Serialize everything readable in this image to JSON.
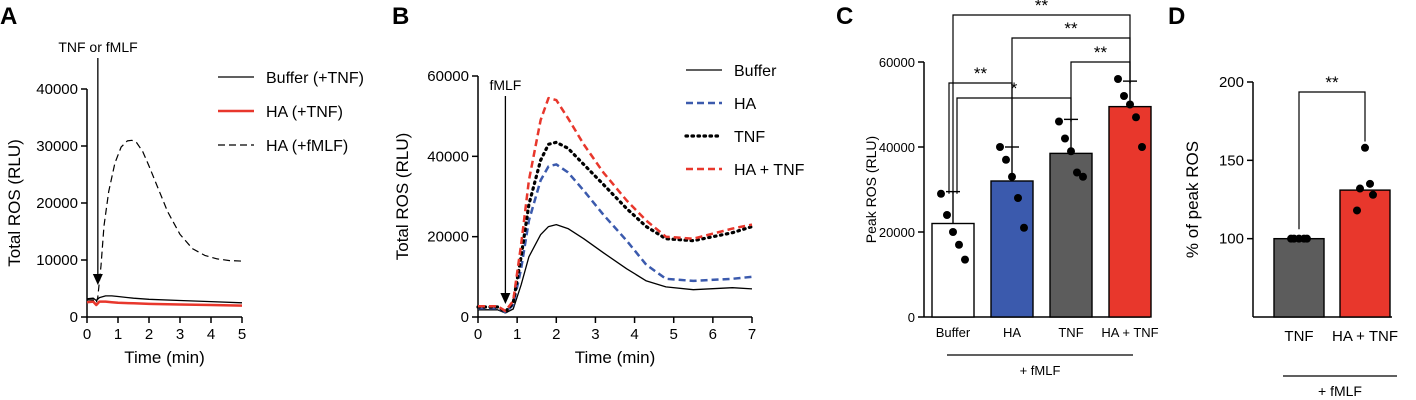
{
  "colors": {
    "black": "#000000",
    "red": "#e8372c",
    "blue": "#3b5aad",
    "grey": "#5c5c5c",
    "white": "#ffffff"
  },
  "panels": {
    "a": "A",
    "b": "B",
    "c": "C",
    "d": "D"
  },
  "chart_data": [
    {
      "id": "A",
      "type": "line",
      "title": "",
      "xlabel": "Time (min)",
      "ylabel": "Total ROS (RLU)",
      "xlim": [
        0,
        5
      ],
      "ylim": [
        0,
        40000
      ],
      "xticks": [
        "0",
        "1",
        "2",
        "3",
        "4",
        "5"
      ],
      "yticks": [
        "0",
        "10000",
        "20000",
        "30000",
        "40000"
      ],
      "annotation": {
        "text": "TNF or fMLF",
        "x": 0.35
      },
      "series": [
        {
          "name": "Buffer (+TNF)",
          "color": "#000000",
          "style": "solid",
          "width": 1.3,
          "x": [
            0,
            0.2,
            0.3,
            0.4,
            0.6,
            0.8,
            1,
            1.5,
            2,
            3,
            4,
            5
          ],
          "y": [
            3200,
            3300,
            2900,
            3400,
            3700,
            3700,
            3600,
            3300,
            3100,
            2900,
            2700,
            2500
          ]
        },
        {
          "name": "HA (+TNF)",
          "color": "#e8372c",
          "style": "solid",
          "width": 2.5,
          "x": [
            0,
            0.2,
            0.3,
            0.4,
            0.6,
            0.8,
            1,
            1.5,
            2,
            3,
            4,
            5
          ],
          "y": [
            2600,
            2700,
            2100,
            2700,
            2700,
            2600,
            2500,
            2400,
            2300,
            2200,
            2100,
            2000
          ]
        },
        {
          "name": "HA (+fMLF)",
          "color": "#000000",
          "style": "dashed",
          "width": 1.2,
          "x": [
            0,
            0.2,
            0.3,
            0.35,
            0.45,
            0.55,
            0.7,
            0.9,
            1.1,
            1.3,
            1.45,
            1.6,
            1.8,
            2.0,
            2.3,
            2.6,
            3.0,
            3.4,
            3.8,
            4.2,
            4.6,
            5.0
          ],
          "y": [
            3000,
            3000,
            2500,
            3500,
            9000,
            16000,
            22000,
            27000,
            29800,
            30900,
            31000,
            30600,
            29000,
            26500,
            22500,
            18500,
            14500,
            12000,
            10800,
            10200,
            9900,
            9800
          ]
        }
      ]
    },
    {
      "id": "B",
      "type": "line",
      "title": "",
      "xlabel": "Time (min)",
      "ylabel": "Total ROS (RLU)",
      "xlim": [
        0,
        7
      ],
      "ylim": [
        0,
        60000
      ],
      "xticks": [
        "0",
        "1",
        "2",
        "3",
        "4",
        "5",
        "6",
        "7"
      ],
      "yticks": [
        "0",
        "20000",
        "40000",
        "60000"
      ],
      "annotation": {
        "text": "fMLF",
        "x": 0.7
      },
      "series": [
        {
          "name": "Buffer",
          "color": "#000000",
          "style": "solid",
          "width": 1.3,
          "x": [
            0,
            0.5,
            0.7,
            0.9,
            1.1,
            1.3,
            1.6,
            1.8,
            2.0,
            2.3,
            2.7,
            3.2,
            3.8,
            4.3,
            4.8,
            5.5,
            6.5,
            7.0
          ],
          "y": [
            1800,
            1800,
            1000,
            2000,
            8000,
            15000,
            20500,
            22500,
            23000,
            22000,
            19500,
            16000,
            12000,
            9000,
            7500,
            6800,
            7300,
            7000
          ]
        },
        {
          "name": "HA",
          "color": "#3b5aad",
          "style": "dashed",
          "width": 2.5,
          "x": [
            0,
            0.5,
            0.7,
            0.9,
            1.1,
            1.3,
            1.6,
            1.8,
            2.0,
            2.3,
            2.7,
            3.2,
            3.8,
            4.3,
            4.8,
            5.5,
            6.5,
            7.0
          ],
          "y": [
            2200,
            2200,
            1200,
            3000,
            12000,
            24000,
            34000,
            37500,
            38000,
            36000,
            31500,
            25500,
            19000,
            13000,
            9500,
            9000,
            9500,
            10000
          ]
        },
        {
          "name": "TNF",
          "color": "#000000",
          "style": "dotted",
          "width": 3.2,
          "x": [
            0,
            0.5,
            0.7,
            0.9,
            1.1,
            1.3,
            1.6,
            1.8,
            2.0,
            2.3,
            2.7,
            3.2,
            3.8,
            4.3,
            4.8,
            5.5,
            6.5,
            7.0
          ],
          "y": [
            2500,
            2500,
            1300,
            3500,
            15000,
            28000,
            39000,
            43000,
            43500,
            42000,
            38000,
            33000,
            27000,
            22500,
            19500,
            19000,
            21000,
            22500
          ]
        },
        {
          "name": "HA + TNF",
          "color": "#e8372c",
          "style": "dashed",
          "width": 2.5,
          "x": [
            0,
            0.5,
            0.7,
            0.9,
            1.1,
            1.3,
            1.6,
            1.8,
            2.0,
            2.3,
            2.7,
            3.2,
            3.8,
            4.3,
            4.8,
            5.5,
            6.5,
            7.0
          ],
          "y": [
            2700,
            2700,
            1500,
            4000,
            18000,
            34000,
            49000,
            54500,
            54000,
            49500,
            43000,
            36000,
            29000,
            24000,
            20000,
            19500,
            22000,
            23000
          ]
        }
      ]
    },
    {
      "id": "C",
      "type": "bar",
      "title": "",
      "xlabel": "",
      "ylabel": "Peak ROS (RLU)",
      "group_label": "+ fMLF",
      "ylim": [
        0,
        60000
      ],
      "yticks": [
        "0",
        "20000",
        "40000",
        "60000"
      ],
      "categories": [
        "Buffer",
        "HA",
        "TNF",
        "HA + TNF"
      ],
      "values": [
        22000,
        32000,
        38500,
        49500
      ],
      "errors": [
        7500,
        8000,
        8000,
        6000
      ],
      "bar_colors": [
        "#ffffff",
        "#3b5aad",
        "#5c5c5c",
        "#e8372c"
      ],
      "points": [
        [
          29000,
          24000,
          20000,
          17000,
          13500
        ],
        [
          40000,
          37000,
          33000,
          28000,
          21000
        ],
        [
          46000,
          42000,
          39000,
          34000,
          33000
        ],
        [
          56000,
          52000,
          50000,
          47000,
          40000
        ]
      ],
      "significance": [
        {
          "from": 0,
          "to": 3,
          "label": "**"
        },
        {
          "from": 1,
          "to": 3,
          "label": "**"
        },
        {
          "from": 2,
          "to": 3,
          "label": "**"
        },
        {
          "from": 0,
          "to": 1,
          "label": "**"
        },
        {
          "from": 0,
          "to": 2,
          "label": "*"
        }
      ]
    },
    {
      "id": "D",
      "type": "bar",
      "title": "",
      "xlabel": "",
      "ylabel": "% of peak ROS",
      "group_label": "+ fMLF",
      "ylim": [
        50,
        200
      ],
      "yticks": [
        "100",
        "150",
        "200"
      ],
      "categories": [
        "TNF",
        "HA + TNF"
      ],
      "values": [
        100,
        131
      ],
      "errors": [
        0,
        0
      ],
      "bar_colors": [
        "#5c5c5c",
        "#e8372c"
      ],
      "points": [
        [
          100,
          100,
          100,
          100,
          100
        ],
        [
          158,
          135,
          132,
          128,
          118
        ]
      ],
      "significance": [
        {
          "from": 0,
          "to": 1,
          "label": "**"
        }
      ]
    }
  ]
}
